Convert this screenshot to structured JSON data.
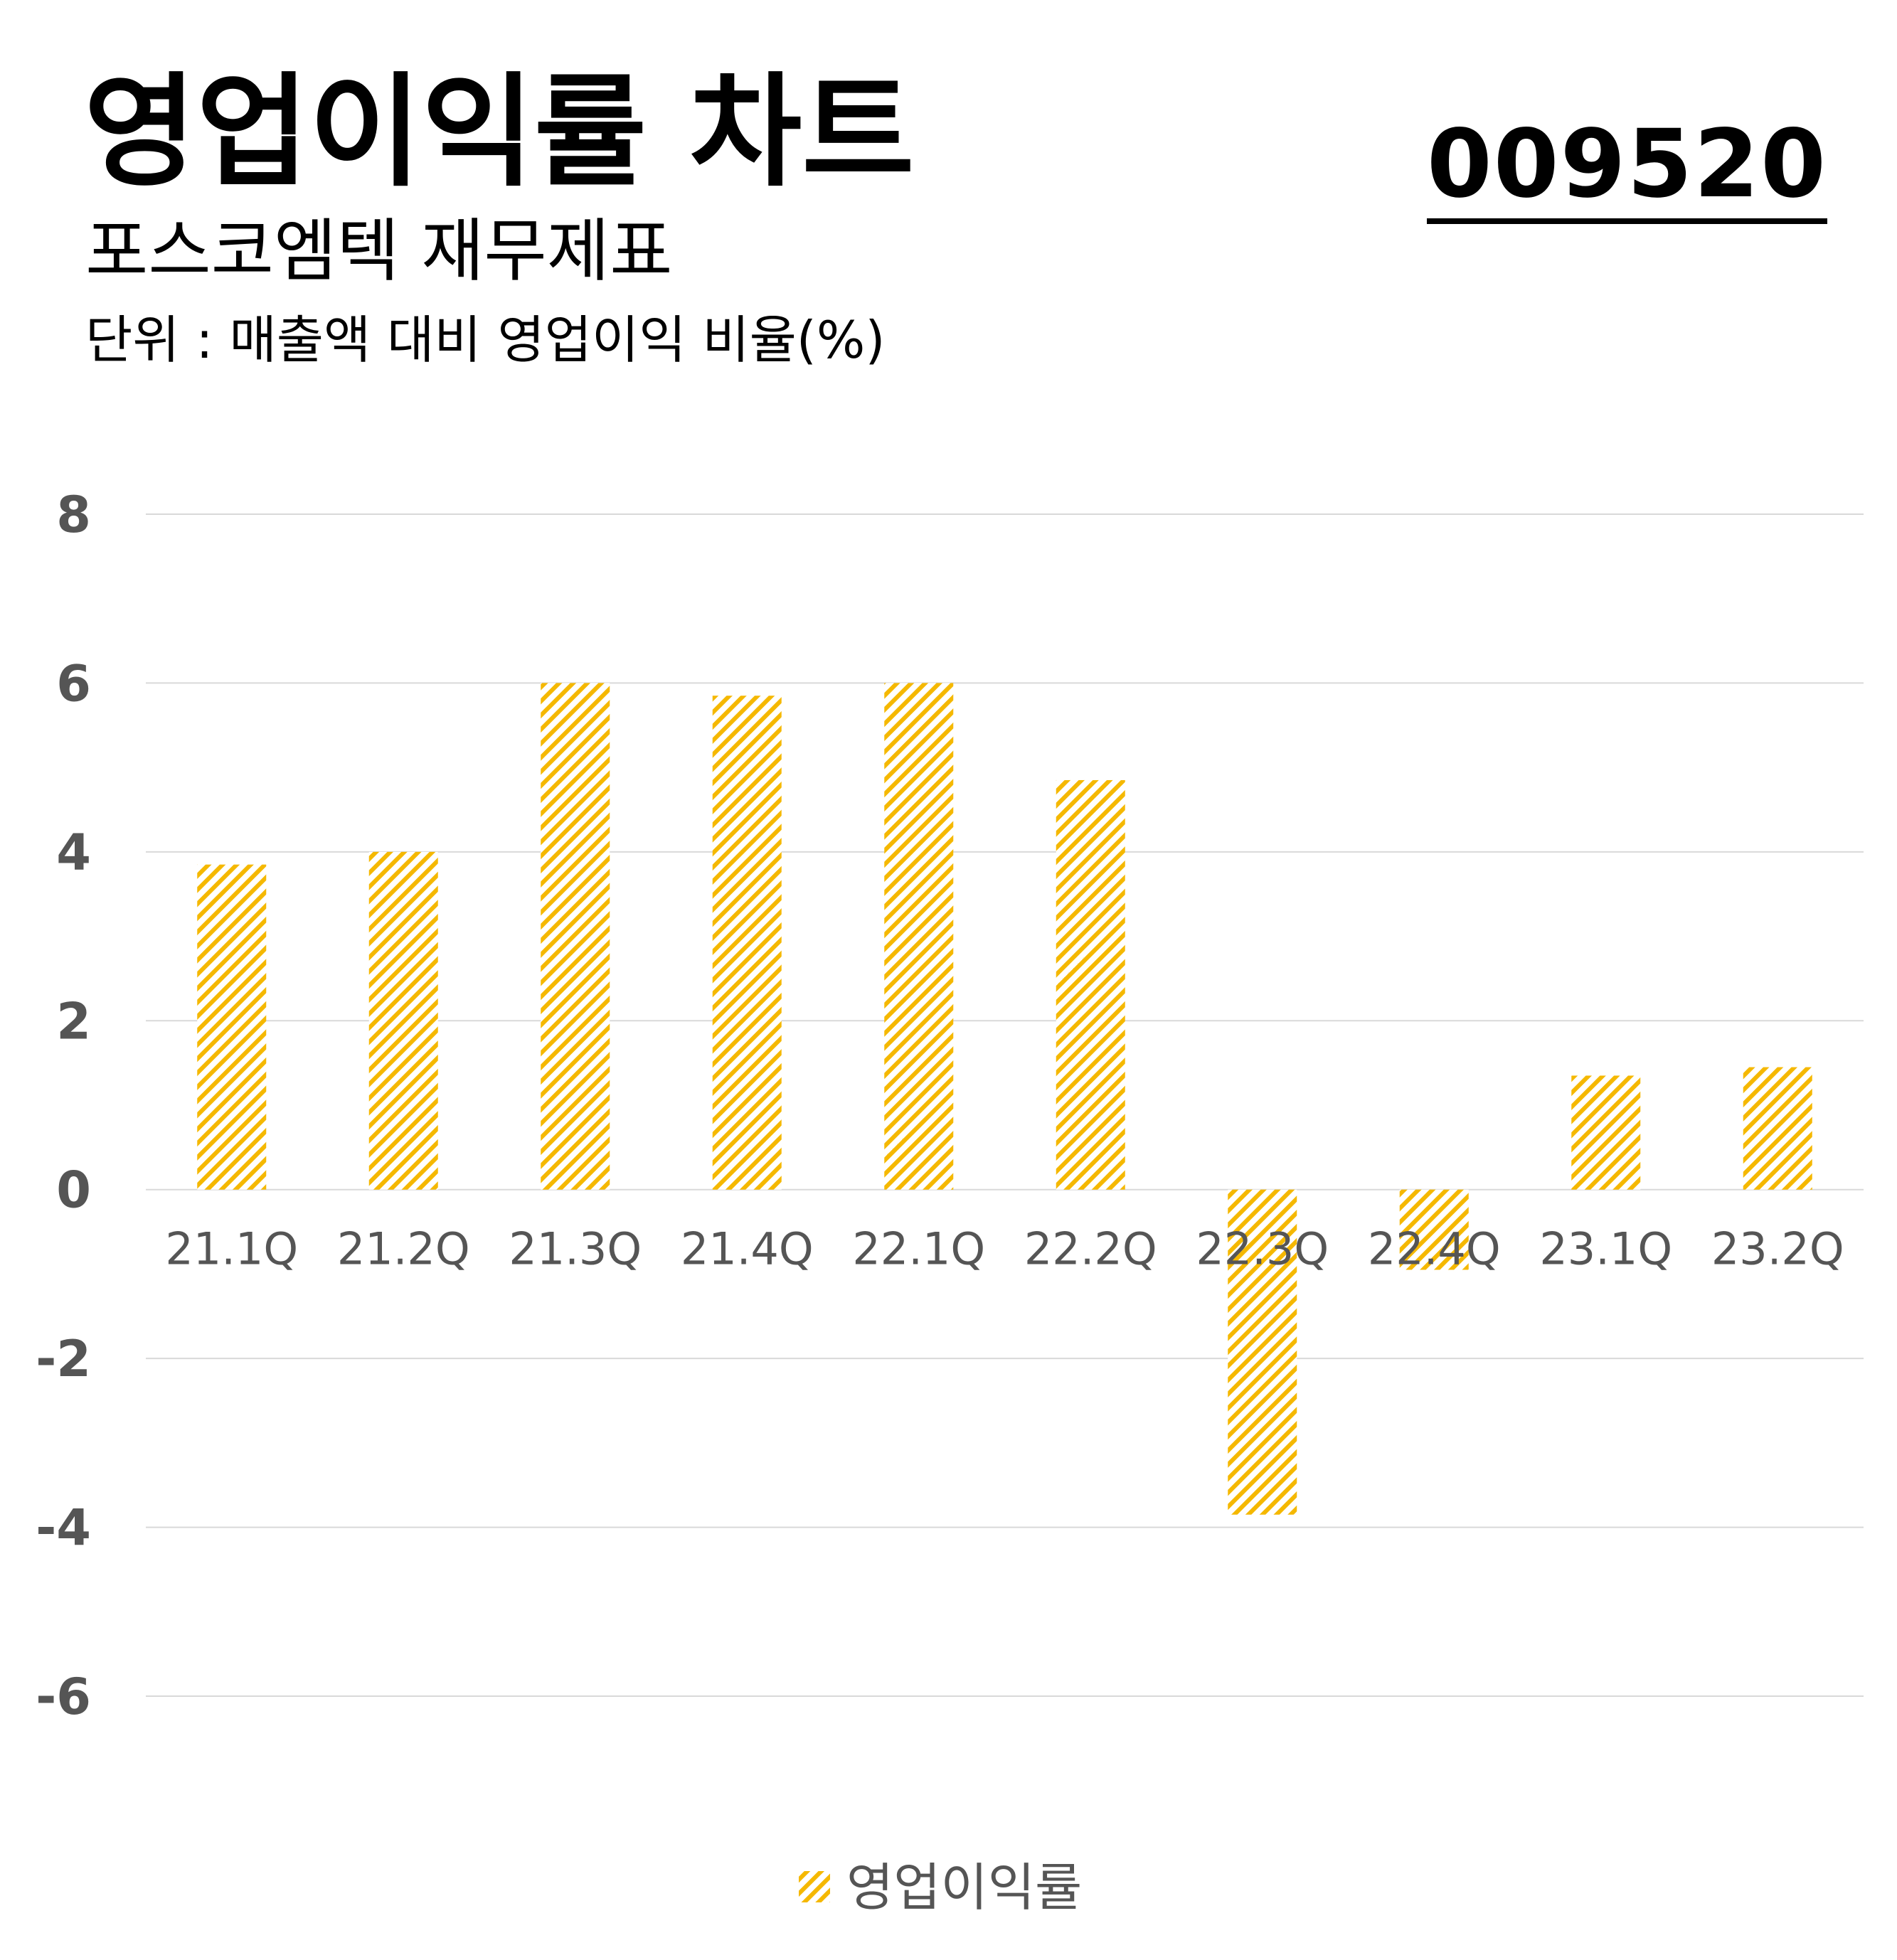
{
  "header": {
    "title": "영업이익률 차트",
    "subtitle": "포스코엠텍 재무제표",
    "unit": "단위 : 매출액 대비 영업이익 비율(%)",
    "code": "009520"
  },
  "colors": {
    "bar": "#F5B800",
    "grid": "#D9D9D9",
    "axis_text": "#555555"
  },
  "chart_data": {
    "type": "bar",
    "categories": [
      "21.1Q",
      "21.2Q",
      "21.3Q",
      "21.4Q",
      "22.1Q",
      "22.2Q",
      "22.3Q",
      "22.4Q",
      "23.1Q",
      "23.2Q"
    ],
    "series": [
      {
        "name": "영업이익률",
        "values": [
          3.85,
          4.0,
          6.0,
          5.85,
          6.0,
          4.85,
          -3.85,
          -0.95,
          1.35,
          1.45
        ]
      }
    ],
    "ylim": [
      -6,
      8
    ],
    "yticks": [
      8,
      6,
      4,
      2,
      0,
      -2,
      -4,
      -6
    ],
    "grid": true,
    "legend": "bottom-center",
    "bar_pattern": "diagonal-hatch"
  }
}
